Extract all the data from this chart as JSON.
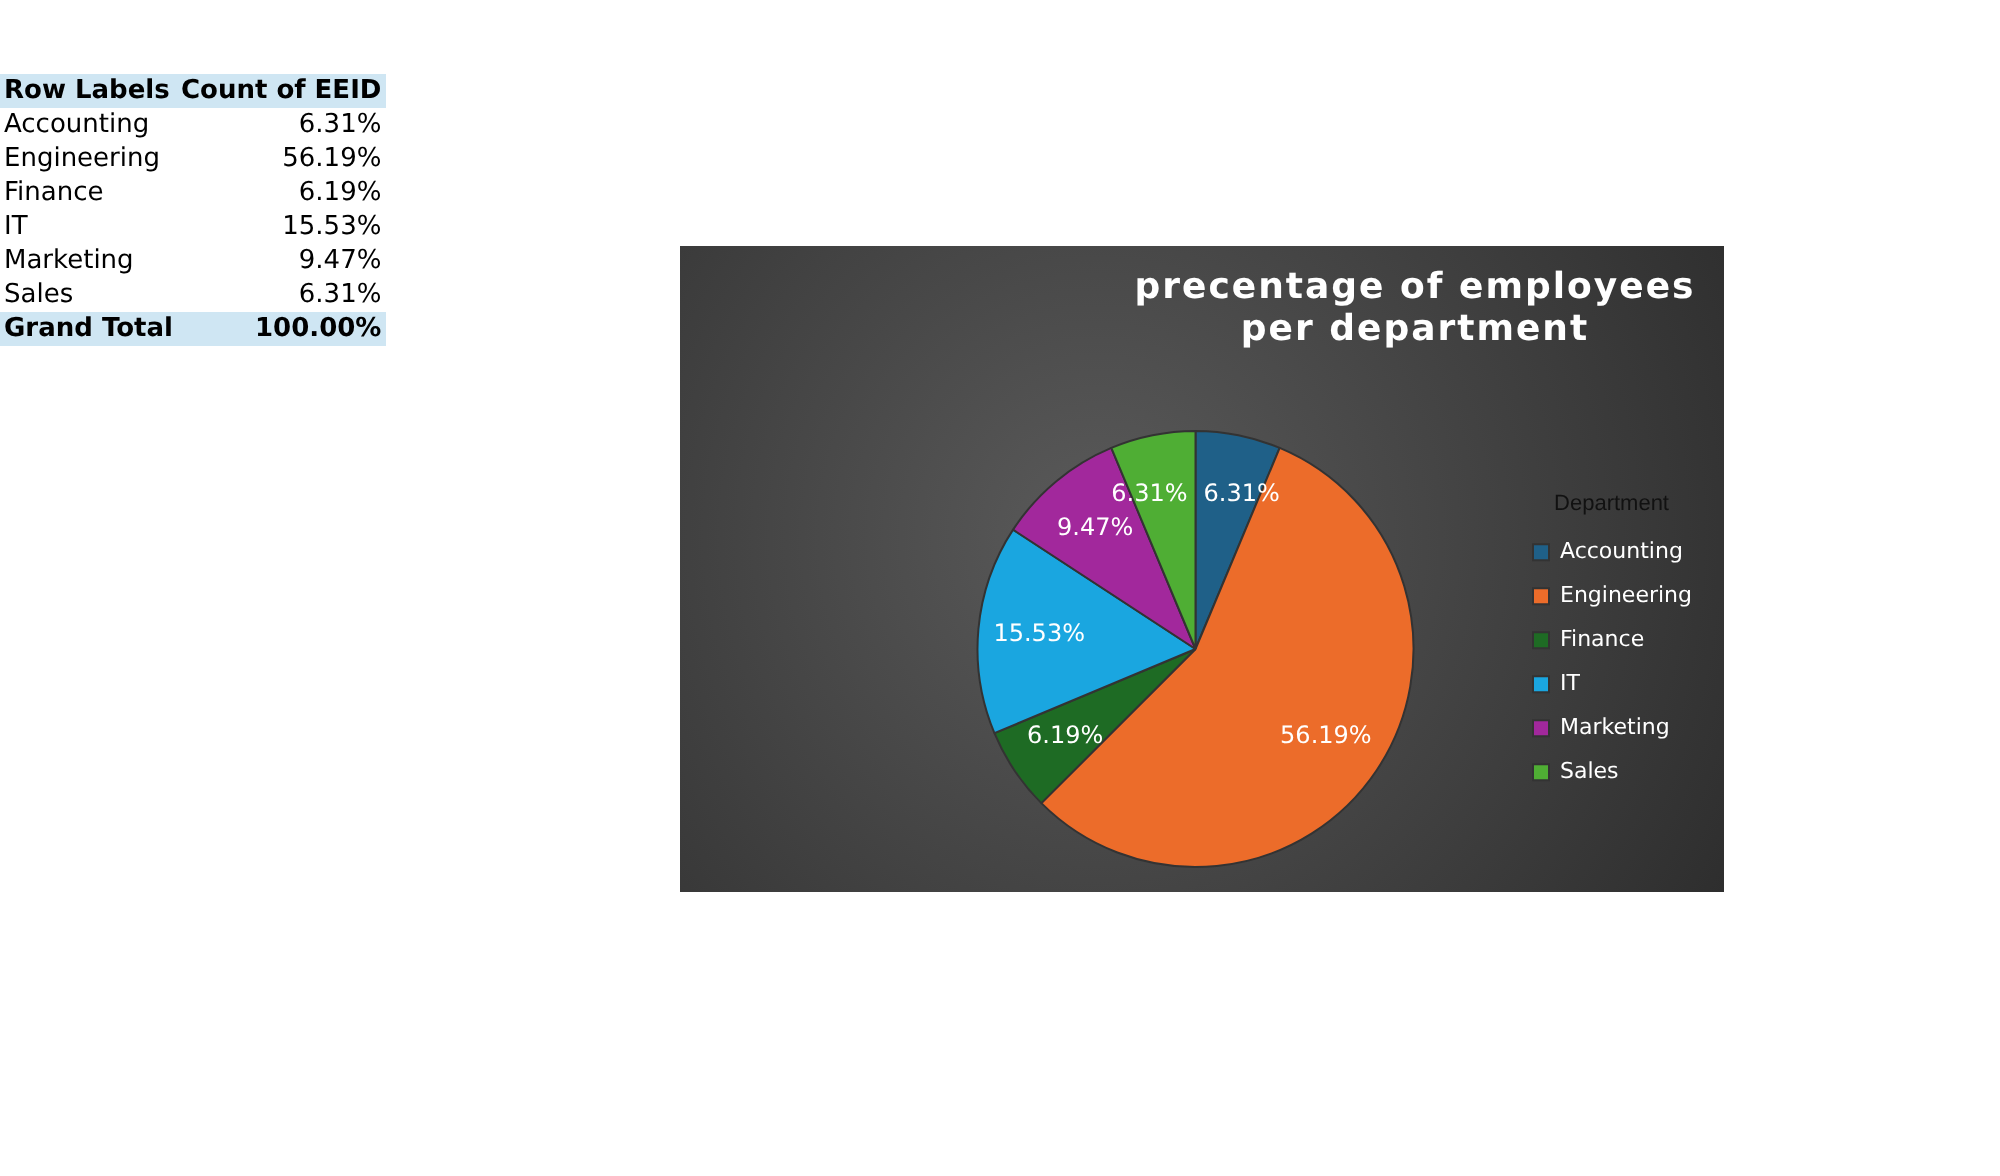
{
  "chart_data": {
    "type": "pie",
    "title": "precentage of employees  per department",
    "legend_title": "Department",
    "legend": "right",
    "categories": [
      "Accounting",
      "Engineering",
      "Finance",
      "IT",
      "Marketing",
      "Sales"
    ],
    "values": [
      6.31,
      56.19,
      6.19,
      15.53,
      9.47,
      6.31
    ],
    "value_labels": [
      "6.31%",
      "56.19%",
      "6.19%",
      "15.53%",
      "9.47%",
      "6.31%"
    ],
    "colors": [
      "#1f6088",
      "#ec6c2a",
      "#1e6b24",
      "#1aa6e0",
      "#a2289c",
      "#4fae34"
    ],
    "annotations": [
      "Row Labels",
      "Count of EEID",
      "Grand Total",
      "100.00%"
    ]
  }
}
